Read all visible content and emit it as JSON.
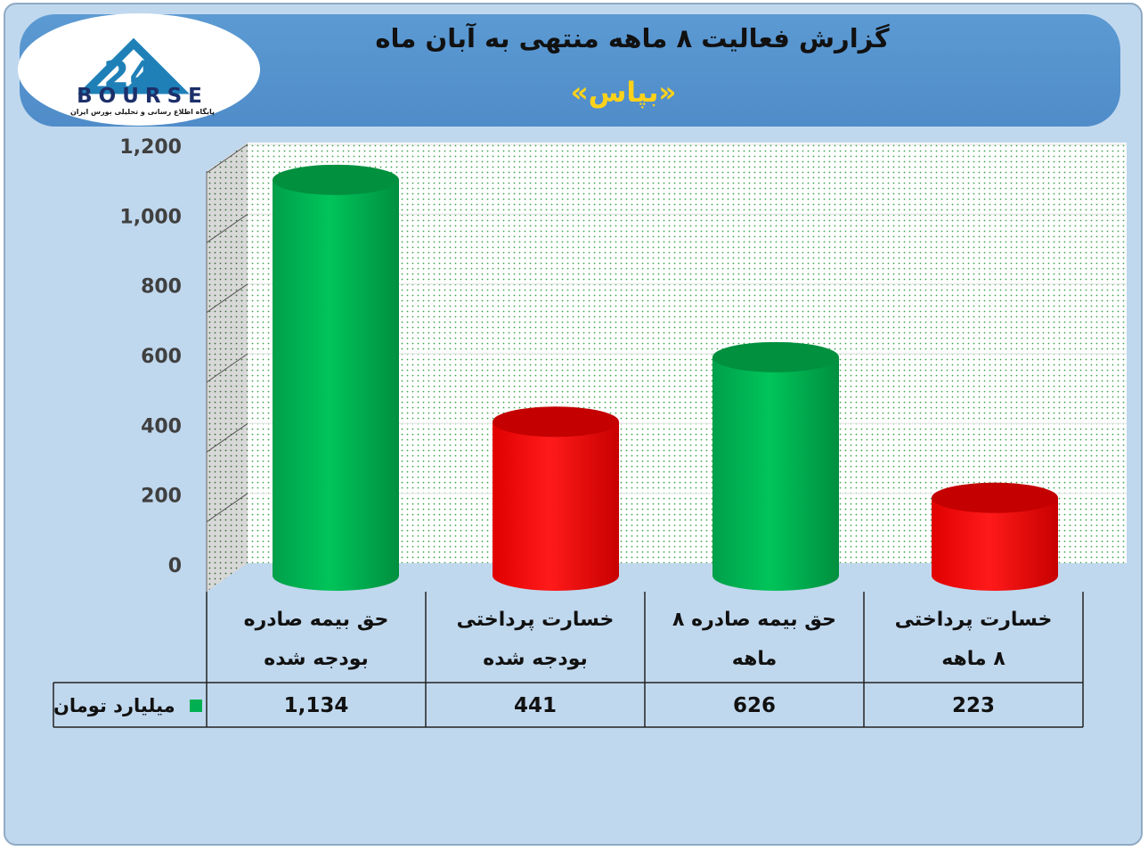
{
  "header": {
    "title": "گزارش فعالیت ۸ ماهه منتهی به آبان ماه",
    "subtitle": "«بپاس»"
  },
  "logo": {
    "word": "BOURSE",
    "tagline": "پایگاه اطلاع رسانی و تحلیلی بورس ایران"
  },
  "colors": {
    "positive": "#00b050",
    "negative": "#ff0000",
    "background": "#c0d8ee",
    "banner": "#5595d0"
  },
  "chart_data": {
    "type": "bar",
    "categories": [
      "حق بیمه صادره\nبودجه شده",
      "خسارت پرداختی\nبودجه شده",
      "حق بیمه صادره ۸\nماهه",
      "خسارت پرداختی\n۸ ماهه"
    ],
    "series": [
      {
        "name": "میلیارد تومان",
        "values": [
          1134,
          441,
          626,
          223
        ],
        "value_labels": [
          "1,134",
          "441",
          "626",
          "223"
        ],
        "colors": [
          "#00b050",
          "#ff0000",
          "#00b050",
          "#ff0000"
        ]
      }
    ],
    "yticks": [
      "0",
      "200",
      "400",
      "600",
      "800",
      "1,000",
      "1,200"
    ],
    "ylim": [
      0,
      1200
    ],
    "grid": true,
    "legend": "data-table-left"
  }
}
